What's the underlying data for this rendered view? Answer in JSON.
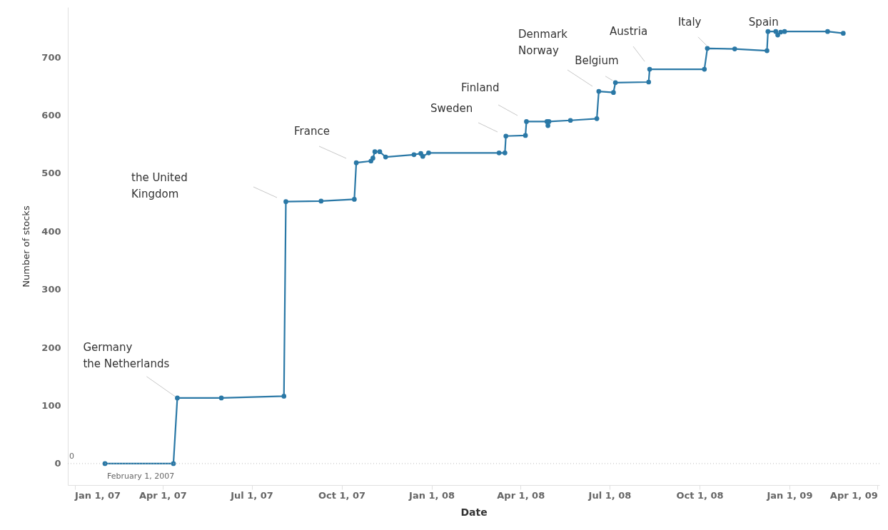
{
  "chart_data": {
    "type": "step",
    "xlabel": "Date",
    "ylabel": "Number of stocks",
    "x": [
      "2007-02-01",
      "2007-04-12",
      "2007-04-16",
      "2007-05-31",
      "2007-08-03",
      "2007-08-05",
      "2007-09-10",
      "2007-10-14",
      "2007-10-16",
      "2007-10-31",
      "2007-11-02",
      "2007-11-04",
      "2007-11-09",
      "2007-11-15",
      "2007-12-14",
      "2007-12-21",
      "2007-12-23",
      "2007-12-29",
      "2008-03-10",
      "2008-03-16",
      "2008-03-17",
      "2008-04-06",
      "2008-04-07",
      "2008-04-28",
      "2008-04-29",
      "2008-04-30",
      "2008-05-22",
      "2008-06-18",
      "2008-06-20",
      "2008-07-05",
      "2008-07-07",
      "2008-08-10",
      "2008-08-11",
      "2008-10-06",
      "2008-10-09",
      "2008-11-06",
      "2008-12-09",
      "2008-12-10",
      "2008-12-18",
      "2008-12-20",
      "2008-12-23",
      "2008-12-27",
      "2009-02-09",
      "2009-02-25"
    ],
    "series": [
      {
        "color": "#2a78a6",
        "values": [
          0,
          0,
          113,
          113,
          116,
          451,
          452,
          455,
          518,
          521,
          526,
          537,
          537,
          528,
          532,
          534,
          529,
          535,
          535,
          535,
          564,
          565,
          589,
          589,
          582,
          589,
          591,
          594,
          641,
          639,
          656,
          657,
          679,
          679,
          715,
          714,
          711,
          744,
          744,
          738,
          743,
          744,
          744,
          741
        ]
      }
    ],
    "xlim": [
      "2006-12-25",
      "2009-04-03"
    ],
    "xticks": [
      {
        "value": "2007-01-01",
        "label": "Jan 1, 07"
      },
      {
        "value": "2007-04-01",
        "label": "Apr 1, 07"
      },
      {
        "value": "2007-07-01",
        "label": "Jul 1, 07"
      },
      {
        "value": "2007-10-01",
        "label": "Oct 1, 07"
      },
      {
        "value": "2008-01-01",
        "label": "Jan 1, 08"
      },
      {
        "value": "2008-04-01",
        "label": "Apr 1, 08"
      },
      {
        "value": "2008-07-01",
        "label": "Jul 1, 08"
      },
      {
        "value": "2008-10-01",
        "label": "Oct 1, 08"
      },
      {
        "value": "2009-01-01",
        "label": "Jan 1, 09"
      },
      {
        "value": "2009-04-01",
        "label": "Apr 1, 09"
      }
    ],
    "ylim": [
      -37,
      786
    ],
    "yticks": [
      0,
      100,
      200,
      300,
      400,
      500,
      600,
      700
    ],
    "grid": false,
    "marker": "circle",
    "line_style": "solid",
    "ref_lines": [
      {
        "axis": "y",
        "value": 0,
        "color": "#bbbbbb",
        "line_style": "dotted"
      }
    ],
    "annotations": [
      {
        "text": "Germany\nthe Netherlands",
        "x": "2007-04-16",
        "y": 113
      },
      "the United\nKingdom",
      "France",
      "Sweden",
      "Finland",
      "Denmark\nNorway",
      {
        "text": "Belgium",
        "x": "2008-07-07",
        "y": 656
      },
      {
        "text": "Austria",
        "x": "2008-08-11",
        "y": 679
      },
      {
        "text": "Italy",
        "x": "2008-10-09",
        "y": 715
      },
      {
        "text": "Spain",
        "x": "2008-12-10",
        "y": 744
      },
      "0",
      {
        "text": "February 1, 2007",
        "x": "2007-02-01",
        "y": 0
      }
    ]
  }
}
